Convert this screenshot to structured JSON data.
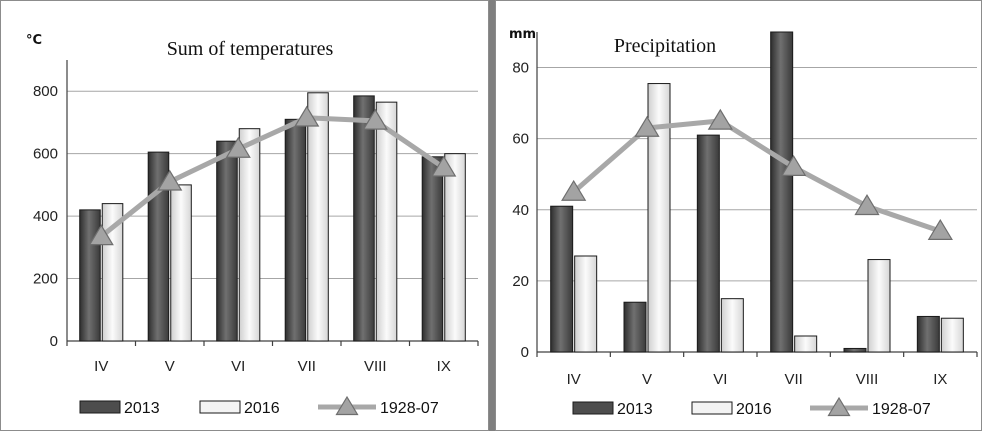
{
  "chart_data": [
    {
      "type": "bar",
      "title": "Sum of temperatures",
      "unit_label": "°C",
      "categories": [
        "IV",
        "V",
        "VI",
        "VII",
        "VIII",
        "IX"
      ],
      "ylim": [
        0,
        900
      ],
      "yticks": [
        0,
        200,
        400,
        600,
        800
      ],
      "grid": true,
      "legend_position": "bottom",
      "series": [
        {
          "name": "2013",
          "kind": "bar",
          "color": "#4d4d4d",
          "values": [
            420,
            605,
            640,
            710,
            785,
            590
          ]
        },
        {
          "name": "2016",
          "kind": "bar",
          "color": "#ececec",
          "values": [
            440,
            500,
            680,
            795,
            765,
            600
          ]
        },
        {
          "name": "1928-07",
          "kind": "line",
          "color": "#a8a8a8",
          "values": [
            335,
            510,
            615,
            715,
            705,
            555
          ]
        }
      ]
    },
    {
      "type": "bar",
      "title": "Precipitation",
      "unit_label": "mm",
      "categories": [
        "IV",
        "V",
        "VI",
        "VII",
        "VIII",
        "IX"
      ],
      "ylim": [
        0,
        90
      ],
      "yticks": [
        0,
        20,
        40,
        60,
        80
      ],
      "grid": true,
      "legend_position": "bottom",
      "series": [
        {
          "name": "2013",
          "kind": "bar",
          "color": "#4d4d4d",
          "values": [
            41,
            14,
            61,
            90,
            1,
            10
          ]
        },
        {
          "name": "2016",
          "kind": "bar",
          "color": "#ececec",
          "values": [
            27,
            75.5,
            15,
            4.5,
            26,
            9.5
          ]
        },
        {
          "name": "1928-07",
          "kind": "line",
          "color": "#a8a8a8",
          "values": [
            45,
            63,
            65,
            52,
            41,
            34
          ]
        }
      ]
    }
  ]
}
